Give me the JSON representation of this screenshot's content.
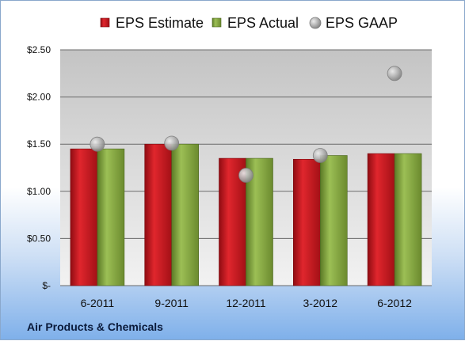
{
  "chart_data": {
    "type": "bar",
    "categories": [
      "6-2011",
      "9-2011",
      "12-2011",
      "3-2012",
      "6-2012"
    ],
    "series": [
      {
        "name": "EPS Estimate",
        "kind": "bar",
        "color": "#c8161d",
        "values": [
          1.45,
          1.5,
          1.35,
          1.34,
          1.4
        ]
      },
      {
        "name": "EPS Actual",
        "kind": "bar",
        "color": "#7a9a3a",
        "values": [
          1.45,
          1.5,
          1.35,
          1.38,
          1.4
        ]
      },
      {
        "name": "EPS GAAP",
        "kind": "scatter",
        "color": "#a9a9a9",
        "values": [
          1.5,
          1.51,
          1.17,
          1.38,
          2.25
        ]
      }
    ],
    "ylim": [
      0,
      2.5
    ],
    "yticks": [
      0,
      0.5,
      1.0,
      1.5,
      2.0,
      2.5
    ],
    "ytick_labels": [
      "$-",
      "$0.50",
      "$1.00",
      "$1.50",
      "$2.00",
      "$2.50"
    ],
    "grid": true,
    "legend_position": "top",
    "plot_background": [
      "#b9b9b9",
      "#f2f2f2"
    ]
  },
  "caption": "Air Products & Chemicals"
}
